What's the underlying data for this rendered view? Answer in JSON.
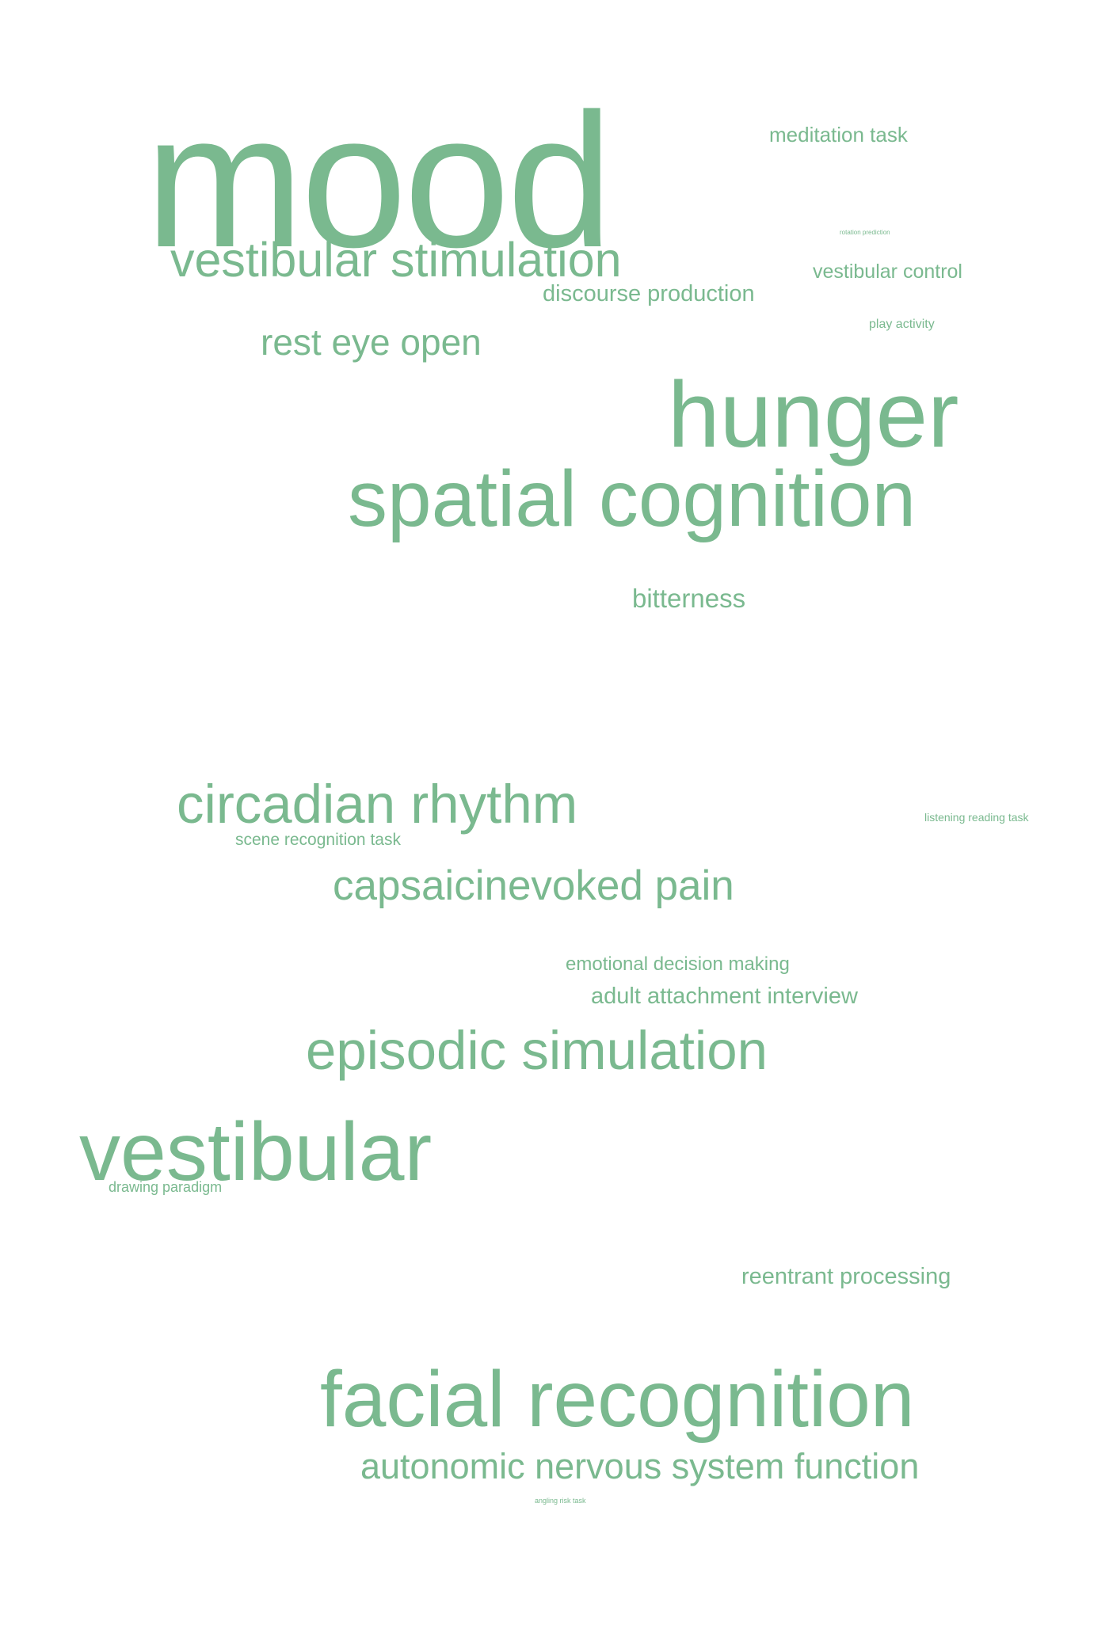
{
  "word_cloud": {
    "color": "#7ab98f",
    "background": "#ffffff",
    "words": {
      "mood": "mood",
      "meditation_task": "meditation task",
      "rotation_prediction": "rotation prediction",
      "vestibular_stimulation": "vestibular stimulation",
      "vestibular_control": "vestibular control",
      "discourse_production": "discourse production",
      "play_activity": "play activity",
      "rest_eye_open": "rest eye open",
      "hunger": "hunger",
      "spatial_cognition": "spatial cognition",
      "bitterness": "bitterness",
      "circadian_rhythm": "circadian rhythm",
      "listening_reading_task": "listening reading task",
      "scene_recognition_task": "scene recognition task",
      "capsaicinevoked_pain": "capsaicinevoked pain",
      "emotional_decision_making": "emotional decision making",
      "adult_attachment_interview": "adult attachment interview",
      "episodic_simulation": "episodic simulation",
      "vestibular": "vestibular",
      "drawing_paradigm": "drawing paradigm",
      "reentrant_processing": "reentrant processing",
      "facial_recognition": "facial recognition",
      "autonomic_nervous_system_function": "autonomic nervous system function",
      "angling_risk_task": "angling risk task"
    }
  }
}
